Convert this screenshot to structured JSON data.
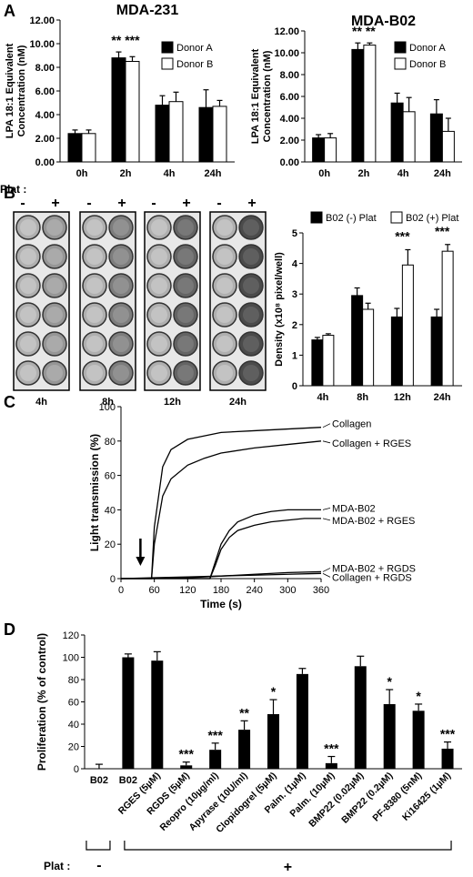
{
  "chart_data": [
    {
      "panel": "A",
      "type": "bar",
      "title": "MDA-231",
      "ylabel": "LPA 18:1 Equivalent Concentration (nM)",
      "ylabel_lines": [
        "LPA 18:1 Equivalent",
        "Concentration (nM)"
      ],
      "categories": [
        "0h",
        "2h",
        "4h",
        "24h"
      ],
      "ylim": [
        0,
        12
      ],
      "yticks": [
        "0.00",
        "2.00",
        "4.00",
        "6.00",
        "8.00",
        "10.00",
        "12.00"
      ],
      "series": [
        {
          "name": "Donor A",
          "values": [
            2.4,
            8.8,
            4.8,
            4.6
          ],
          "errors": [
            0.3,
            0.5,
            0.8,
            1.5
          ]
        },
        {
          "name": "Donor B",
          "values": [
            2.4,
            8.5,
            5.1,
            4.7
          ],
          "errors": [
            0.3,
            0.4,
            0.8,
            0.5
          ]
        }
      ],
      "annotations": [
        {
          "category": "2h",
          "text": "** ***"
        }
      ],
      "legend": "top-right"
    },
    {
      "panel": "A2",
      "type": "bar",
      "title": "MDA-B02",
      "ylabel": "LPA 18:1 Equivalent Concentration (nM)",
      "ylabel_lines": [
        "LPA 18:1 Equivalent",
        "Concentration (nM)"
      ],
      "categories": [
        "0h",
        "2h",
        "4h",
        "24h"
      ],
      "ylim": [
        0,
        12
      ],
      "yticks": [
        "0.00",
        "2.00",
        "4.00",
        "6.00",
        "8.00",
        "10.00",
        "12.00"
      ],
      "series": [
        {
          "name": "Donor A",
          "values": [
            2.2,
            10.3,
            5.4,
            4.4
          ],
          "errors": [
            0.3,
            0.6,
            0.9,
            1.3
          ]
        },
        {
          "name": "Donor B",
          "values": [
            2.2,
            10.7,
            4.6,
            2.8
          ],
          "errors": [
            0.4,
            0.2,
            1.3,
            1.2
          ]
        }
      ],
      "annotations": [
        {
          "category": "2h",
          "text": "** **"
        }
      ],
      "legend": "top-right"
    },
    {
      "panel": "B",
      "type": "bar",
      "ylabel": "Density (x10⁸ pixel/well)",
      "categories": [
        "4h",
        "8h",
        "12h",
        "24h"
      ],
      "ylim": [
        0,
        5
      ],
      "yticks": [
        "0",
        "1",
        "2",
        "3",
        "4",
        "5"
      ],
      "series": [
        {
          "name": "B02 (-) Plat",
          "values": [
            1.5,
            2.95,
            2.25,
            2.25
          ],
          "errors": [
            0.08,
            0.25,
            0.28,
            0.25
          ]
        },
        {
          "name": "B02 (+) Plat",
          "values": [
            1.65,
            2.5,
            3.95,
            4.4
          ],
          "errors": [
            0.05,
            0.2,
            0.5,
            0.22
          ]
        }
      ],
      "annotations": [
        {
          "category": "12h",
          "text": "***"
        },
        {
          "category": "24h",
          "text": "***"
        }
      ],
      "legend": "top"
    },
    {
      "panel": "C",
      "type": "line",
      "xlabel": "Time (s)",
      "ylabel": "Light transmission (%)",
      "xlim": [
        0,
        360
      ],
      "ylim": [
        0,
        100
      ],
      "xticks": [
        0,
        60,
        120,
        180,
        240,
        300,
        360
      ],
      "yticks": [
        0,
        20,
        40,
        60,
        80,
        100
      ],
      "series": [
        {
          "name": "Collagen",
          "x": [
            0,
            55,
            60,
            75,
            90,
            120,
            150,
            180,
            240,
            300,
            360
          ],
          "y": [
            0,
            0,
            30,
            65,
            75,
            81,
            83,
            85,
            86,
            87,
            88
          ]
        },
        {
          "name": "Collagen + RGES",
          "x": [
            0,
            55,
            60,
            75,
            90,
            120,
            150,
            180,
            240,
            300,
            360
          ],
          "y": [
            0,
            0,
            20,
            48,
            58,
            66,
            70,
            73,
            76,
            78,
            80
          ]
        },
        {
          "name": "MDA-B02",
          "x": [
            0,
            160,
            170,
            180,
            195,
            210,
            240,
            270,
            300,
            330,
            360
          ],
          "y": [
            0,
            0,
            10,
            20,
            28,
            33,
            37,
            39,
            40,
            40,
            40
          ]
        },
        {
          "name": "MDA-B02 + RGES",
          "x": [
            0,
            160,
            170,
            180,
            195,
            210,
            240,
            270,
            300,
            330,
            360
          ],
          "y": [
            0,
            0,
            8,
            17,
            24,
            28,
            31,
            33,
            34,
            35,
            35
          ]
        },
        {
          "name": "MDA-B02 + RGDS",
          "x": [
            0,
            120,
            180,
            240,
            300,
            360
          ],
          "y": [
            0,
            0.5,
            1.5,
            2.5,
            3.5,
            4
          ]
        },
        {
          "name": "Collagen + RGDS",
          "x": [
            0,
            60,
            120,
            180,
            240,
            300,
            360
          ],
          "y": [
            0,
            0.5,
            1,
            1.5,
            2,
            2.5,
            3
          ]
        }
      ],
      "arrow_at_x": 35
    },
    {
      "panel": "D",
      "type": "bar",
      "ylabel": "Proliferation (% of control)",
      "ylim": [
        0,
        120
      ],
      "yticks": [
        0,
        20,
        40,
        60,
        80,
        100,
        120
      ],
      "categories": [
        "B02",
        "B02",
        "RGES (5µM)",
        "RGDS (5µM)",
        "Reopro (10µg/ml)",
        "Apyrase (10U/ml)",
        "Clopidogrel (5µM)",
        "Palm. (1µM)",
        "Palm. (10µM)",
        "BMP22 (0.02µM)",
        "BMP22 (0.2µM)",
        "PF-8380 (5nM)",
        "Ki16425 (1µM)"
      ],
      "values": [
        0,
        100,
        97,
        3,
        17,
        35,
        49,
        85,
        5,
        92,
        58,
        52,
        18
      ],
      "errors": [
        4,
        3,
        8,
        3,
        6,
        8,
        13,
        5,
        6,
        9,
        13,
        6,
        6
      ],
      "significance": [
        "",
        "",
        "",
        "***",
        "***",
        "**",
        "*",
        "",
        "***",
        "",
        "*",
        "*",
        "***"
      ]
    }
  ],
  "panel_labels": {
    "a": "A",
    "b": "B",
    "c": "C",
    "d": "D"
  },
  "plate": {
    "plat_label": "Plat :",
    "minus": "-",
    "plus": "+",
    "timepoints": [
      "4h",
      "8h",
      "12h",
      "24h"
    ]
  },
  "panel_d_plat": {
    "label": "Plat :",
    "minus": "-",
    "plus": "+"
  }
}
